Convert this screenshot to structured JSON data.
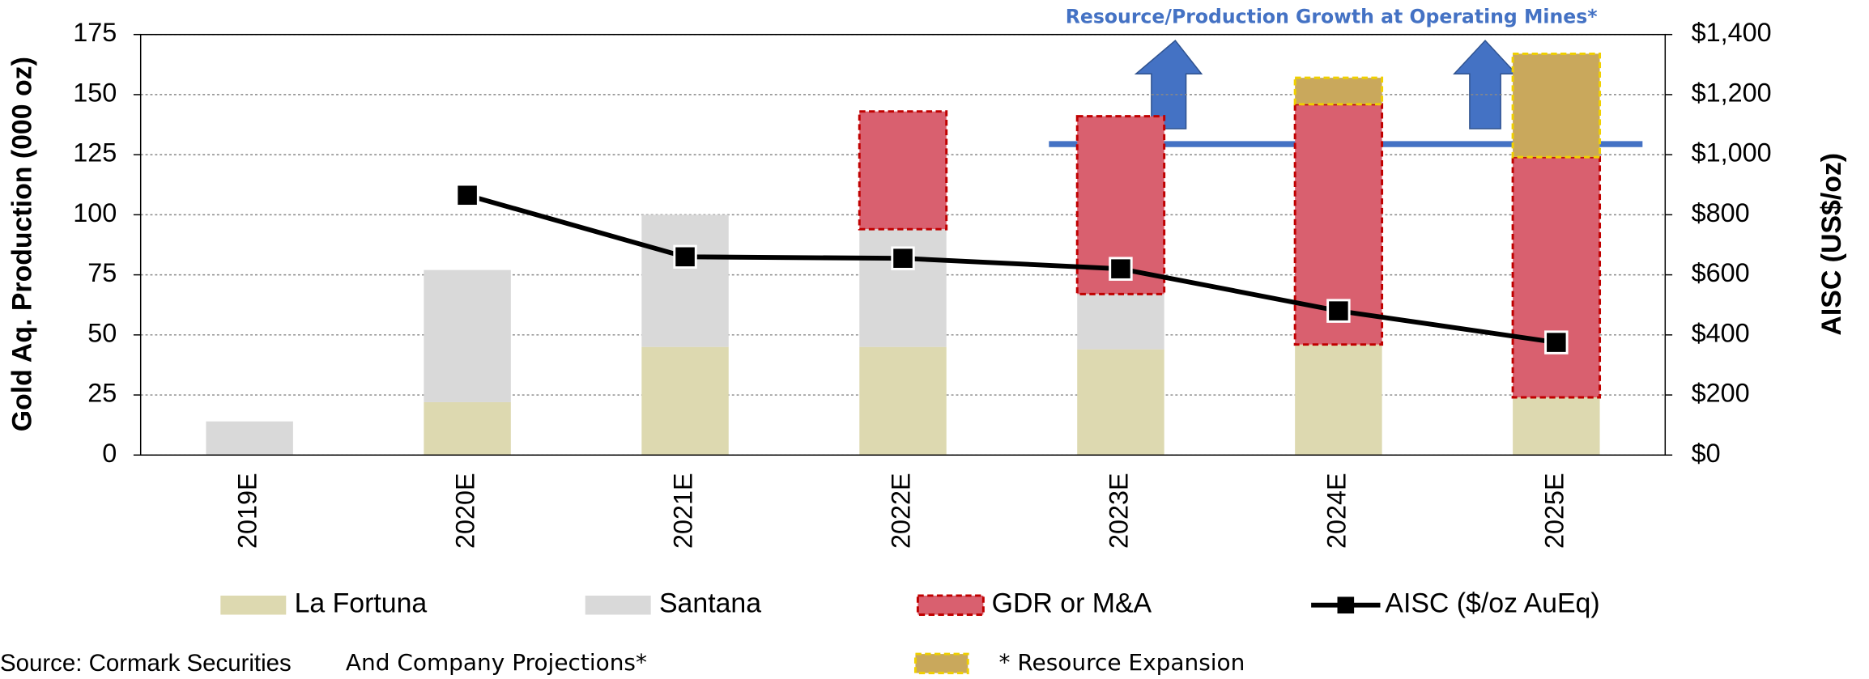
{
  "chart_data": {
    "type": "bar",
    "categories": [
      "2019E",
      "2020E",
      "2021E",
      "2022E",
      "2023E",
      "2024E",
      "2025E"
    ],
    "ylabel": "Gold Aq. Production (000 oz)",
    "y2label": "AISC (US$/oz)",
    "ylim": [
      0,
      175
    ],
    "yticks": [
      0,
      25,
      50,
      75,
      100,
      125,
      150,
      175
    ],
    "y2lim": [
      0,
      1400
    ],
    "y2ticks": [
      {
        "value": 0,
        "label": "$0"
      },
      {
        "value": 200,
        "label": "$200"
      },
      {
        "value": 400,
        "label": "$400"
      },
      {
        "value": 600,
        "label": "$600"
      },
      {
        "value": 800,
        "label": "$800"
      },
      {
        "value": 1000,
        "label": "$1,000"
      },
      {
        "value": 1200,
        "label": "$1,200"
      },
      {
        "value": 1400,
        "label": "$1,400"
      }
    ],
    "grid": true,
    "annotation": "Resource/Production Growth at Operating Mines*",
    "source": "Source: Cormark Securities",
    "source_note": "And Company Projections*",
    "series": [
      {
        "name": "La Fortuna",
        "color": "#ddd9b0",
        "values": [
          0,
          22,
          45,
          45,
          44,
          46,
          24
        ]
      },
      {
        "name": "Santana",
        "color": "#d9d9d9",
        "values": [
          14,
          55,
          55,
          49,
          23,
          0,
          0
        ]
      },
      {
        "name": "GDR or M&A",
        "color": "#d9606f",
        "border": "#c00000",
        "values": [
          0,
          0,
          0,
          49,
          74,
          100,
          100
        ]
      },
      {
        "name": "* Resource Expansion",
        "color": "#c9a85c",
        "border": "#f0d000",
        "values": [
          0,
          0,
          0,
          0,
          0,
          11,
          43
        ]
      },
      {
        "name": "AISC ($/oz AuEq)",
        "type": "line",
        "axis": "y2",
        "color": "#000000",
        "values": [
          null,
          865,
          660,
          655,
          620,
          480,
          375
        ]
      }
    ]
  }
}
